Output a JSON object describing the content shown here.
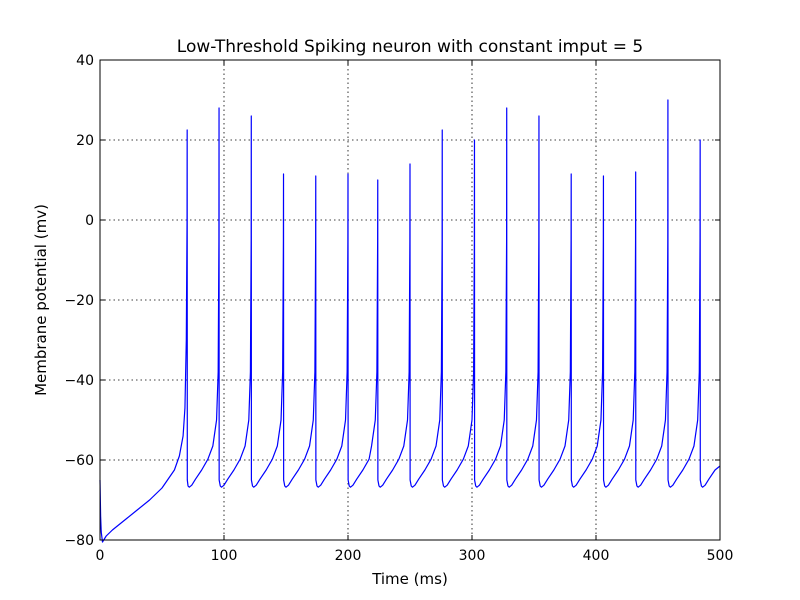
{
  "chart_data": {
    "type": "line",
    "title": "Low-Threshold Spiking neuron with constant imput = 5",
    "xlabel": "Time (ms)",
    "ylabel": "Membrane potential (mv)",
    "xlim": [
      0,
      500
    ],
    "ylim": [
      -80,
      40
    ],
    "xticks": [
      0,
      100,
      200,
      300,
      400,
      500
    ],
    "yticks": [
      -80,
      -60,
      -40,
      -20,
      0,
      20,
      40
    ],
    "xtick_labels": [
      "0",
      "100",
      "200",
      "300",
      "400",
      "500"
    ],
    "ytick_labels": [
      "−80",
      "−60",
      "−40",
      "−20",
      "0",
      "20",
      "40"
    ],
    "grid": true,
    "series": [
      {
        "color": "#0000ff",
        "x": [
          0,
          0.5,
          1,
          2,
          3,
          5,
          10,
          20,
          30,
          40,
          50,
          60,
          64,
          67,
          68.5,
          69.6,
          70.2,
          70.3,
          70.4,
          71,
          72,
          74,
          77,
          82,
          87,
          91,
          94,
          95.3,
          95.9,
          96.0,
          96.1,
          97,
          98,
          100,
          103,
          108,
          113,
          117,
          120,
          121.3,
          121.9,
          122.0,
          122.1,
          123,
          124,
          126,
          129,
          134,
          139,
          143,
          146,
          147.3,
          147.9,
          148.0,
          148.1,
          149,
          150,
          152,
          155,
          160,
          165,
          169,
          172,
          173.3,
          173.9,
          174.0,
          174.1,
          175,
          176,
          178,
          181,
          186,
          191,
          195,
          198,
          199.3,
          199.9,
          200.0,
          200.1,
          201,
          202,
          204,
          207,
          212,
          217,
          219,
          222,
          223.3,
          223.9,
          224.0,
          224.1,
          225,
          226,
          228,
          231,
          236,
          241,
          245,
          248,
          249.3,
          249.9,
          250.0,
          250.1,
          251,
          252,
          254,
          257,
          262,
          267,
          271,
          274,
          275.3,
          275.9,
          276.0,
          276.1,
          277,
          278,
          280,
          283,
          288,
          293,
          297,
          300,
          301.3,
          301.9,
          302.0,
          302.1,
          303,
          304,
          306,
          309,
          314,
          319,
          323,
          326,
          327.3,
          327.9,
          328.0,
          328.1,
          329,
          330,
          332,
          335,
          340,
          345,
          349,
          352,
          353.3,
          353.9,
          354.0,
          354.1,
          355,
          356,
          358,
          361,
          366,
          371,
          375,
          378,
          379.3,
          379.9,
          380.0,
          380.1,
          381,
          382,
          384,
          387,
          392,
          397,
          401,
          404,
          405.3,
          405.9,
          406.0,
          406.1,
          407,
          408,
          410,
          413,
          418,
          423,
          427,
          430,
          431.3,
          431.9,
          432.0,
          432.1,
          433,
          434,
          436,
          439,
          444,
          449,
          453,
          456,
          457.3,
          457.9,
          458.0,
          458.1,
          459,
          460,
          462,
          465,
          470,
          475,
          479,
          482,
          483.3,
          483.9,
          484.0,
          484.1,
          485,
          486,
          488,
          491,
          496,
          500
        ],
        "y": [
          -65,
          -74,
          -78,
          -80.5,
          -80,
          -79,
          -77.5,
          -75,
          -72.5,
          -70,
          -67,
          -62.5,
          -59,
          -54,
          -47,
          -30,
          0,
          22.5,
          -65,
          -66.5,
          -66.8,
          -66.3,
          -64.8,
          -62.5,
          -59.8,
          -56.5,
          -50,
          -38,
          -5,
          28,
          -65,
          -66.5,
          -66.8,
          -66.3,
          -64.8,
          -62.5,
          -59.8,
          -56.5,
          -50,
          -38,
          -5,
          26,
          -65,
          -66.5,
          -66.8,
          -66.3,
          -64.8,
          -62.5,
          -59.8,
          -56.5,
          -50,
          -38,
          -5,
          11.5,
          -65,
          -66.5,
          -66.8,
          -66.3,
          -64.8,
          -62.5,
          -59.8,
          -56.5,
          -50,
          -38,
          -5,
          11,
          -65,
          -66.5,
          -66.8,
          -66.3,
          -64.8,
          -62.5,
          -59.8,
          -56.5,
          -50,
          -38,
          -5,
          11.5,
          -65,
          -66.5,
          -66.8,
          -66.3,
          -64.8,
          -62.5,
          -59.8,
          -56.5,
          -50,
          -38,
          -5,
          10,
          -65,
          -66.5,
          -66.8,
          -66.3,
          -64.8,
          -62.5,
          -59.8,
          -56.5,
          -50,
          -38,
          -5,
          14,
          -65,
          -66.5,
          -66.8,
          -66.3,
          -64.8,
          -62.5,
          -59.8,
          -56.5,
          -50,
          -38,
          -5,
          22.5,
          -65,
          -66.5,
          -66.8,
          -66.3,
          -64.8,
          -62.5,
          -59.8,
          -56.5,
          -50,
          -38,
          -5,
          20,
          -65,
          -66.5,
          -66.8,
          -66.3,
          -64.8,
          -62.5,
          -59.8,
          -56.5,
          -50,
          -38,
          -5,
          28,
          -65,
          -66.5,
          -66.8,
          -66.3,
          -64.8,
          -62.5,
          -59.8,
          -56.5,
          -50,
          -38,
          -5,
          26,
          -65,
          -66.5,
          -66.8,
          -66.3,
          -64.8,
          -62.5,
          -59.8,
          -56.5,
          -50,
          -38,
          -5,
          11.5,
          -65,
          -66.5,
          -66.8,
          -66.3,
          -64.8,
          -62.5,
          -59.8,
          -56.5,
          -50,
          -38,
          -5,
          11,
          -65,
          -66.5,
          -66.8,
          -66.3,
          -64.8,
          -62.5,
          -59.8,
          -56.5,
          -50,
          -38,
          -5,
          12,
          -65,
          -66.5,
          -66.8,
          -66.3,
          -64.8,
          -62.5,
          -59.8,
          -56.5,
          -50,
          -38,
          -5,
          30,
          -65,
          -66.5,
          -66.8,
          -66.3,
          -64.8,
          -62.5,
          -59.8,
          -56.5,
          -50,
          -38,
          -5,
          20,
          -65,
          -66.5,
          -66.8,
          -66.3,
          -64.8,
          -62.5,
          -61.5
        ]
      }
    ]
  }
}
